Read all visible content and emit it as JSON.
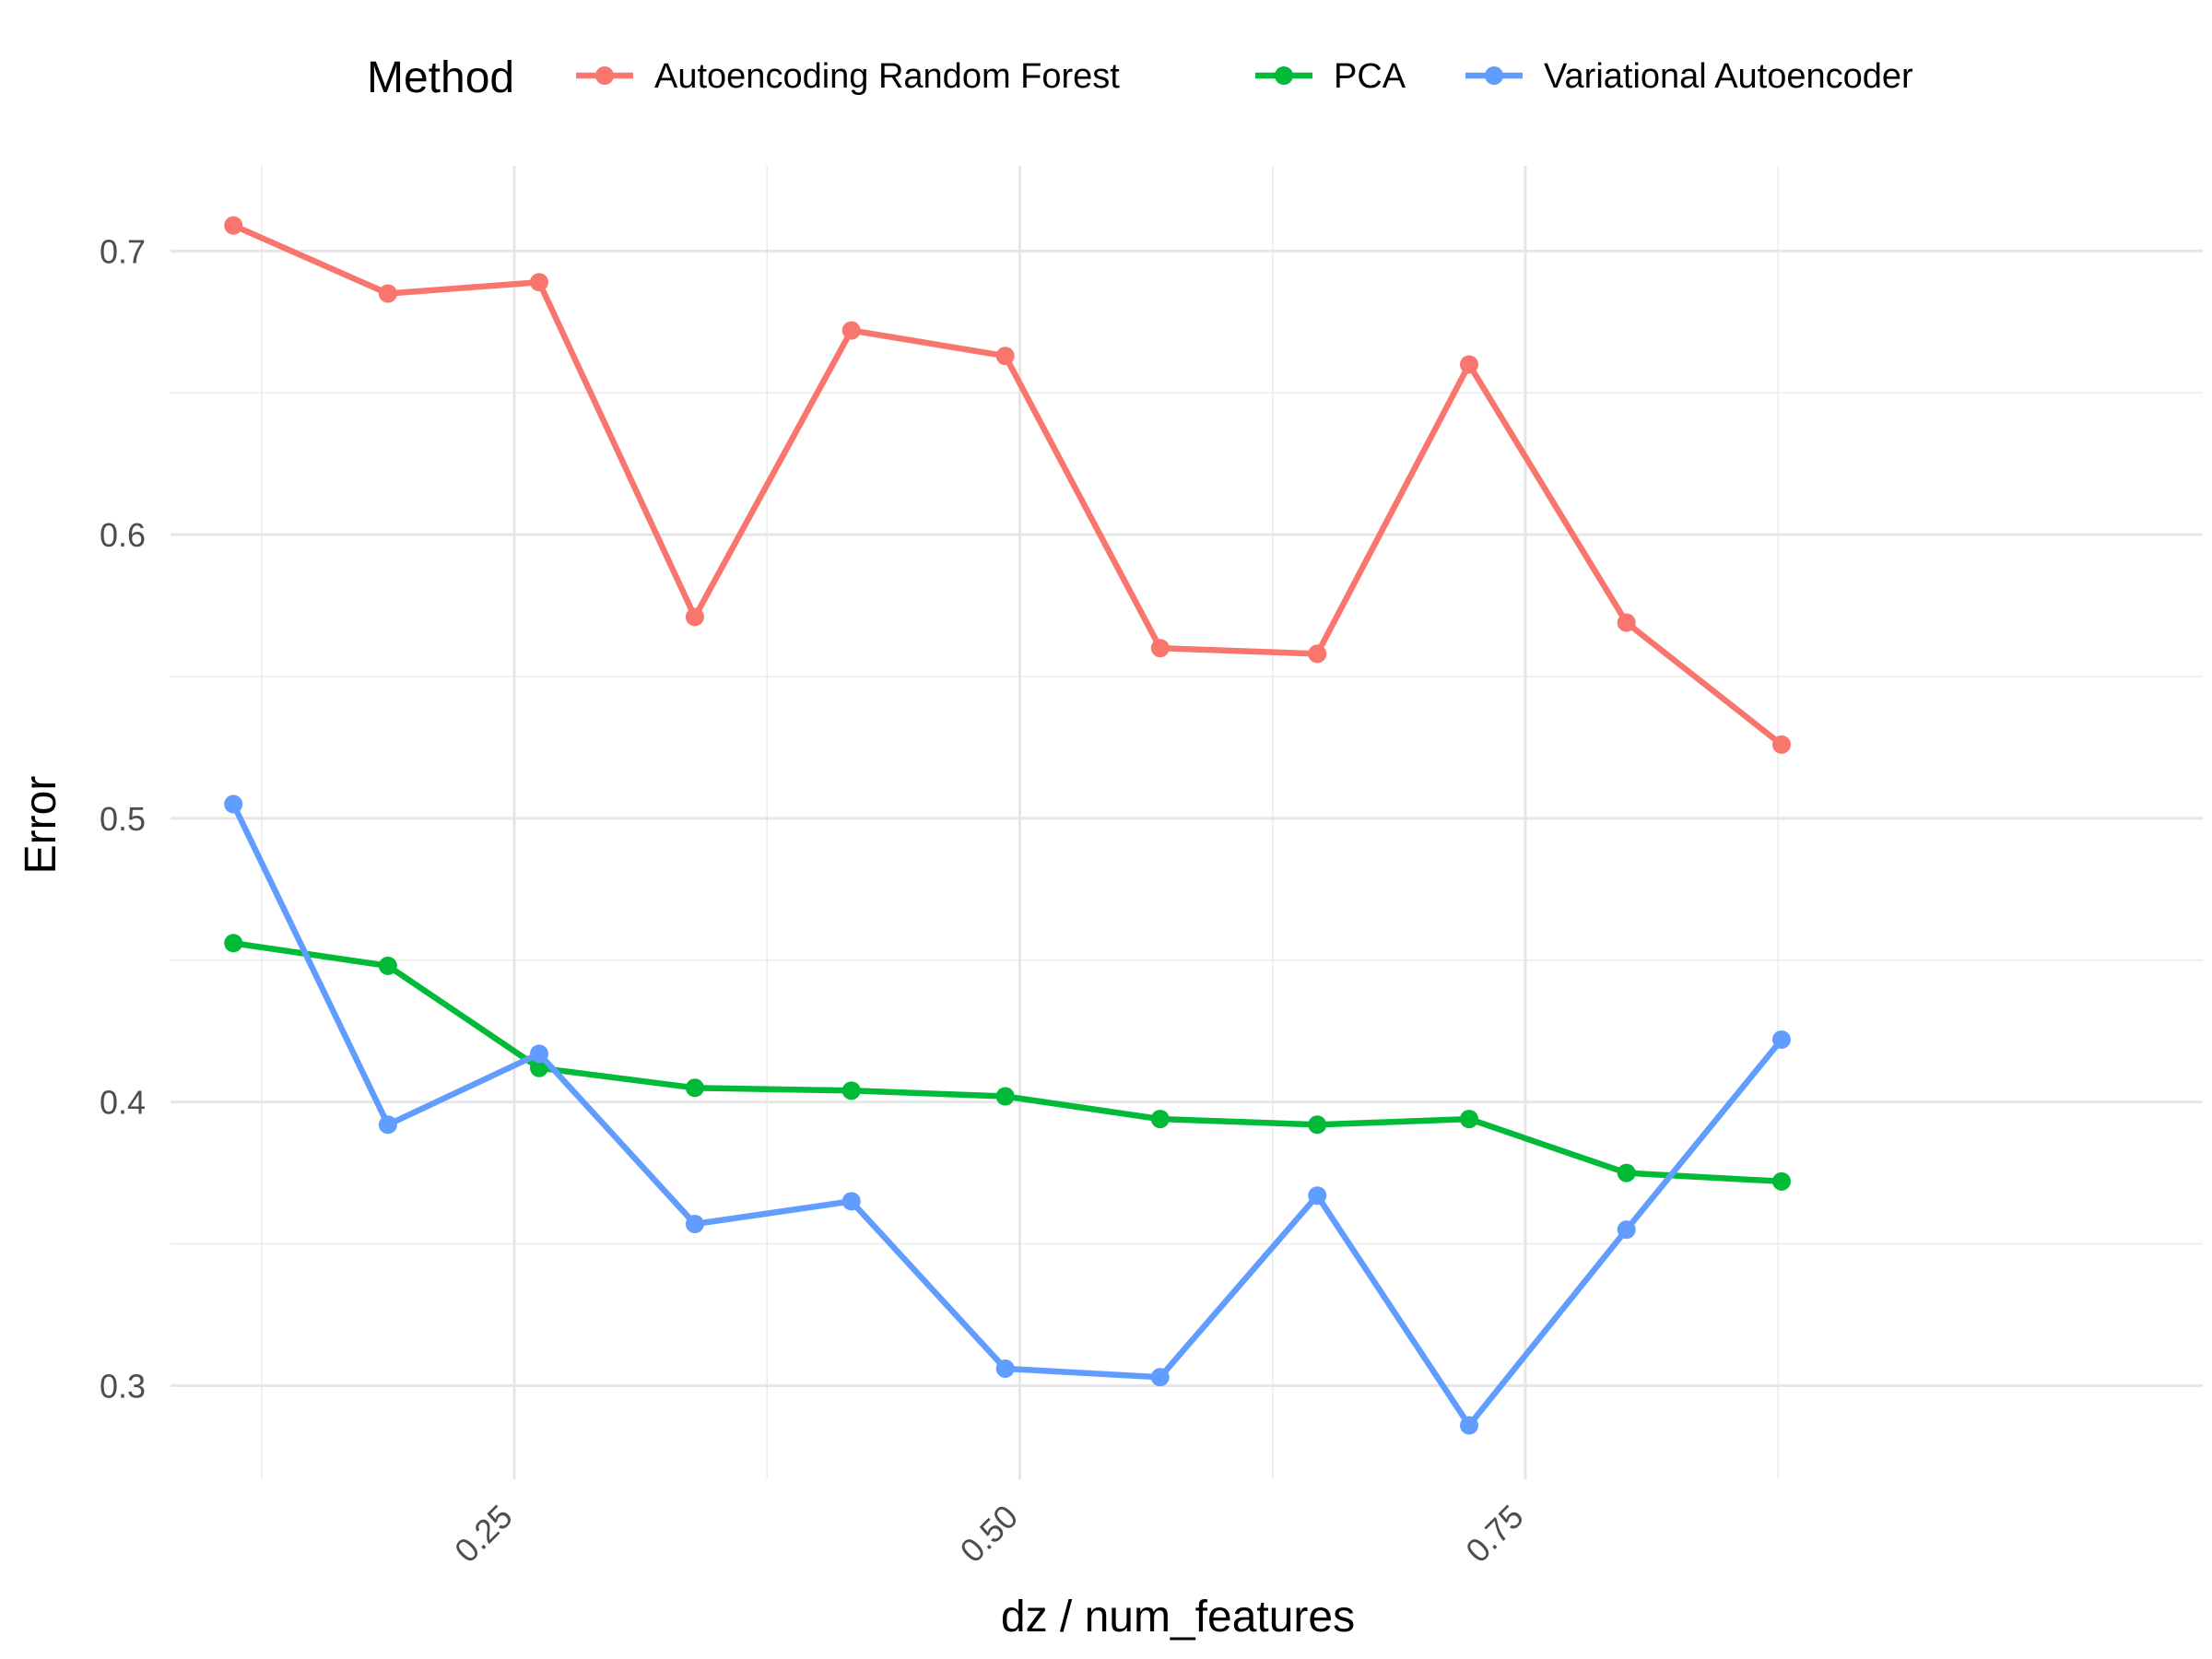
{
  "chart_data": {
    "type": "line",
    "title": "",
    "xlabel": "dz / num_features",
    "ylabel": "Error",
    "xlim": [
      0.08,
      1.085
    ],
    "ylim": [
      0.267,
      0.73
    ],
    "x_ticks": [
      0.25,
      0.5,
      0.75
    ],
    "x_tick_labels": [
      "0.25",
      "0.50",
      "0.75"
    ],
    "y_ticks": [
      0.3,
      0.4,
      0.5,
      0.6,
      0.7
    ],
    "y_tick_labels": [
      "0.3",
      "0.4",
      "0.5",
      "0.6",
      "0.7"
    ],
    "grid": true,
    "legend": {
      "title": "Method",
      "position": "top"
    },
    "x": [
      0.1111,
      0.1875,
      0.2623,
      0.3393,
      0.4167,
      0.4928,
      0.5694,
      0.6471,
      0.7222,
      0.8,
      0.8767
    ],
    "series": [
      {
        "name": "Autoencoding Random Forest",
        "color": "#F8766D",
        "values": [
          0.709,
          0.685,
          0.689,
          0.571,
          0.672,
          0.663,
          0.56,
          0.558,
          0.66,
          0.569,
          0.526
        ]
      },
      {
        "name": "PCA",
        "color": "#00BA38",
        "values": [
          0.456,
          0.448,
          0.412,
          0.405,
          0.404,
          0.402,
          0.394,
          0.392,
          0.394,
          0.375,
          0.372
        ]
      },
      {
        "name": "Variational Autoencoder",
        "color": "#619CFF",
        "values": [
          0.505,
          0.392,
          0.417,
          0.357,
          0.365,
          0.306,
          0.303,
          0.367,
          0.286,
          0.355,
          0.422
        ]
      }
    ]
  }
}
